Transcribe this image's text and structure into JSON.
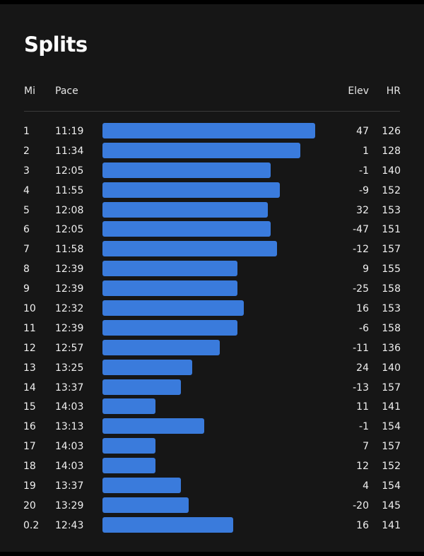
{
  "title": "Splits",
  "headers": {
    "mi": "Mi",
    "pace": "Pace",
    "elev": "Elev",
    "hr": "HR"
  },
  "colors": {
    "bar": "#3a7bdc",
    "background": "#161616"
  },
  "splits": [
    {
      "mi": "1",
      "pace": "11:19",
      "elev": "47",
      "hr": "126"
    },
    {
      "mi": "2",
      "pace": "11:34",
      "elev": "1",
      "hr": "128"
    },
    {
      "mi": "3",
      "pace": "12:05",
      "elev": "-1",
      "hr": "140"
    },
    {
      "mi": "4",
      "pace": "11:55",
      "elev": "-9",
      "hr": "152"
    },
    {
      "mi": "5",
      "pace": "12:08",
      "elev": "32",
      "hr": "153"
    },
    {
      "mi": "6",
      "pace": "12:05",
      "elev": "-47",
      "hr": "151"
    },
    {
      "mi": "7",
      "pace": "11:58",
      "elev": "-12",
      "hr": "157"
    },
    {
      "mi": "8",
      "pace": "12:39",
      "elev": "9",
      "hr": "155"
    },
    {
      "mi": "9",
      "pace": "12:39",
      "elev": "-25",
      "hr": "158"
    },
    {
      "mi": "10",
      "pace": "12:32",
      "elev": "16",
      "hr": "153"
    },
    {
      "mi": "11",
      "pace": "12:39",
      "elev": "-6",
      "hr": "158"
    },
    {
      "mi": "12",
      "pace": "12:57",
      "elev": "-11",
      "hr": "136"
    },
    {
      "mi": "13",
      "pace": "13:25",
      "elev": "24",
      "hr": "140"
    },
    {
      "mi": "14",
      "pace": "13:37",
      "elev": "-13",
      "hr": "157"
    },
    {
      "mi": "15",
      "pace": "14:03",
      "elev": "11",
      "hr": "141"
    },
    {
      "mi": "16",
      "pace": "13:13",
      "elev": "-1",
      "hr": "154"
    },
    {
      "mi": "17",
      "pace": "14:03",
      "elev": "7",
      "hr": "157"
    },
    {
      "mi": "18",
      "pace": "14:03",
      "elev": "12",
      "hr": "152"
    },
    {
      "mi": "19",
      "pace": "13:37",
      "elev": "4",
      "hr": "154"
    },
    {
      "mi": "20",
      "pace": "13:29",
      "elev": "-20",
      "hr": "145"
    },
    {
      "mi": "0.2",
      "pace": "12:43",
      "elev": "16",
      "hr": "141"
    }
  ]
}
